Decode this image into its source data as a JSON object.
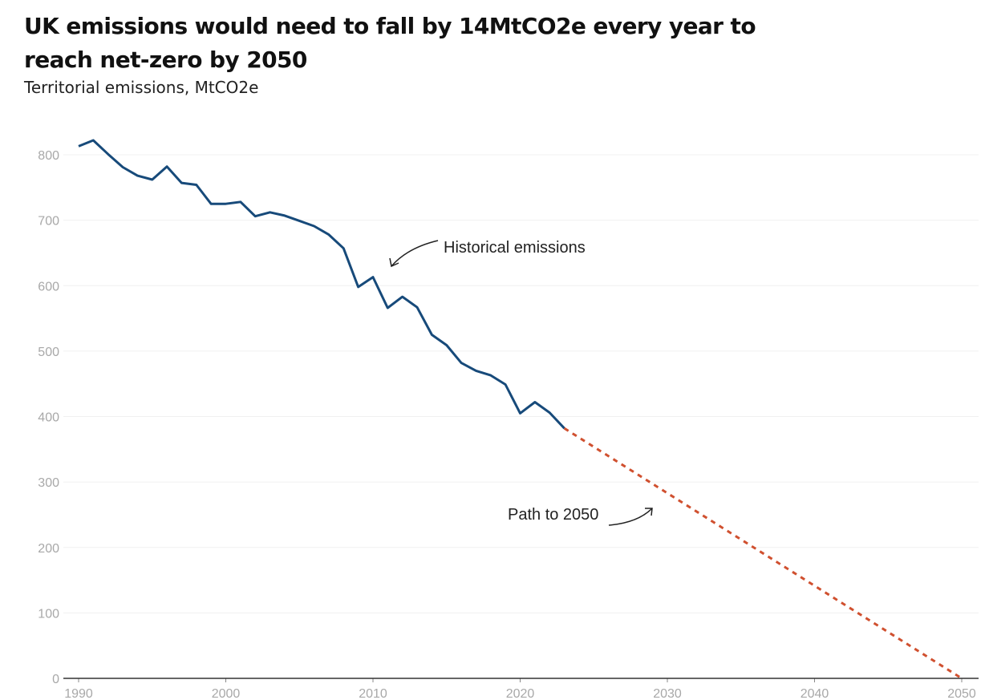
{
  "header": {
    "title_line1": "UK emissions would need to fall by 14MtCO2e every year to",
    "title_line2": "reach net-zero by 2050",
    "subtitle": "Territorial emissions, MtCO2e"
  },
  "colors": {
    "historical": "#174a7a",
    "path": "#d0502f",
    "gridline": "#f0f0f0",
    "axis": "#333333",
    "tick_text": "#a8a8a8"
  },
  "chart_data": {
    "type": "line",
    "title": "UK emissions would need to fall by 14MtCO2e every year to reach net-zero by 2050",
    "subtitle": "Territorial emissions, MtCO2e",
    "xlabel": "",
    "ylabel": "",
    "xlim": [
      1990,
      2050
    ],
    "ylim": [
      0,
      800
    ],
    "x_ticks": [
      1990,
      2000,
      2010,
      2020,
      2030,
      2040,
      2050
    ],
    "y_ticks": [
      0,
      100,
      200,
      300,
      400,
      500,
      600,
      700,
      800
    ],
    "grid": true,
    "series": [
      {
        "name": "Historical emissions",
        "style": "solid",
        "x": [
          1990,
          1991,
          1992,
          1993,
          1994,
          1995,
          1996,
          1997,
          1998,
          1999,
          2000,
          2001,
          2002,
          2003,
          2004,
          2005,
          2006,
          2007,
          2008,
          2009,
          2010,
          2011,
          2012,
          2013,
          2014,
          2015,
          2016,
          2017,
          2018,
          2019,
          2020,
          2021,
          2022,
          2023
        ],
        "values": [
          813,
          822,
          801,
          781,
          768,
          762,
          782,
          757,
          754,
          725,
          725,
          728,
          706,
          712,
          707,
          699,
          691,
          678,
          657,
          598,
          613,
          566,
          583,
          567,
          525,
          509,
          482,
          470,
          463,
          449,
          405,
          422,
          406,
          382
        ]
      },
      {
        "name": "Path to 2050",
        "style": "dashed",
        "x": [
          2023,
          2050
        ],
        "values": [
          382,
          0
        ]
      }
    ],
    "annotations": [
      {
        "text": "Historical emissions",
        "points_to": "2010 emissions"
      },
      {
        "text": "Path to 2050",
        "points_to": "2029 path"
      }
    ]
  }
}
